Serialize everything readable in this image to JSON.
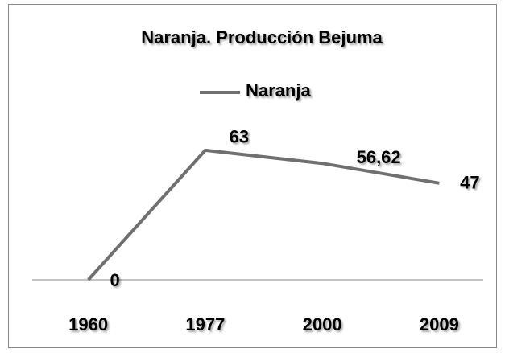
{
  "chart_data": {
    "type": "line",
    "title": "Naranja. Producción Bejuma",
    "categories": [
      "1960",
      "1977",
      "2000",
      "2009"
    ],
    "series": [
      {
        "name": "Naranja",
        "color": "#707070",
        "values": [
          0,
          63,
          56.62,
          47
        ],
        "value_labels": [
          "0",
          "63",
          "56,62",
          "47"
        ]
      }
    ],
    "ylim": [
      0,
      70
    ],
    "legend": "top"
  }
}
